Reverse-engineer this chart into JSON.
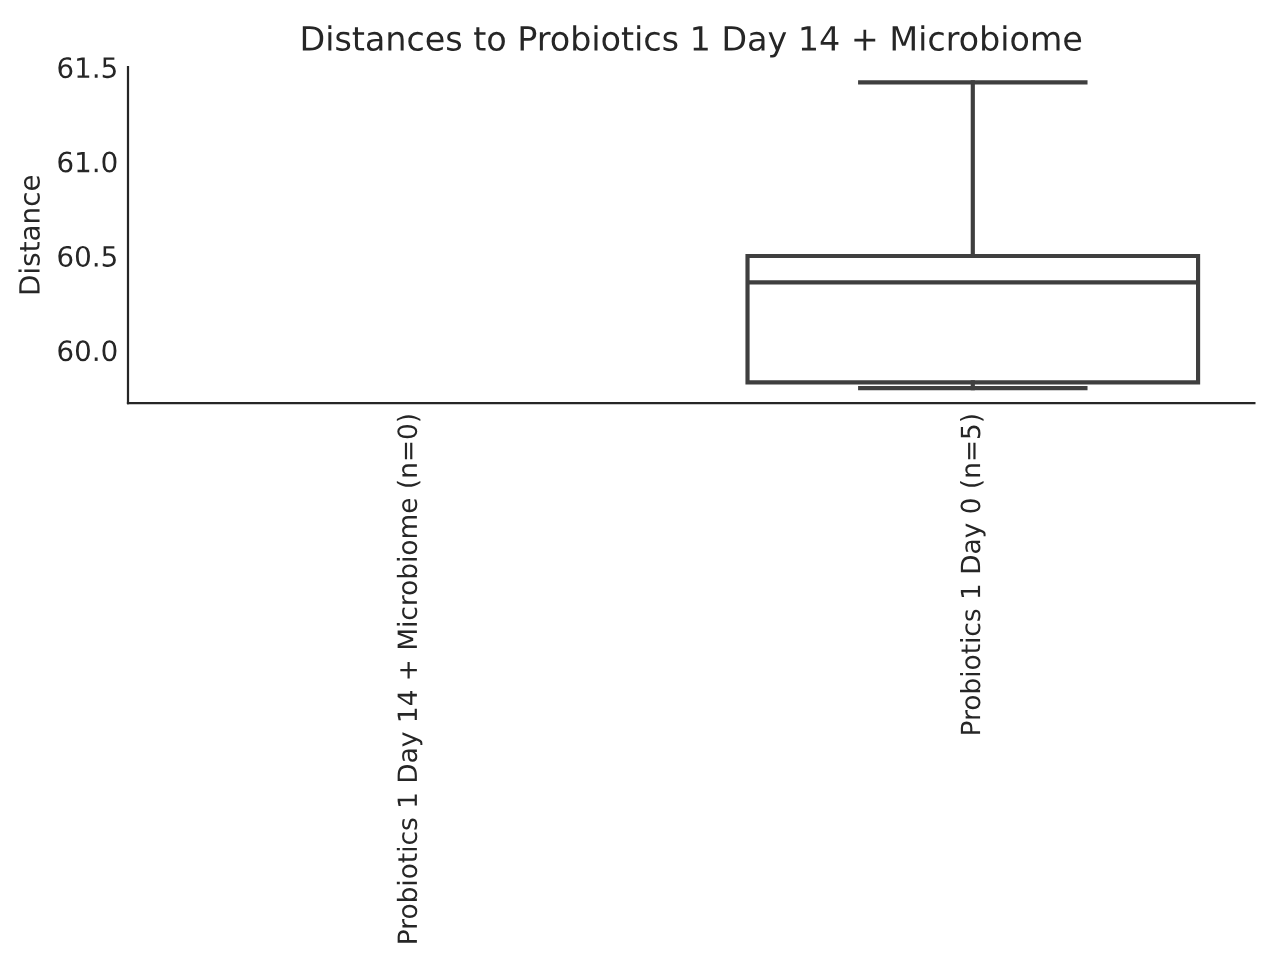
{
  "chart_data": {
    "type": "box",
    "title": "Distances to Probiotics 1 Day 14 + Microbiome",
    "ylabel": "Distance",
    "categories": [
      "Probiotics 1 Day 14 + Microbiome (n=0)",
      "Probiotics 1 Day 0 (n=5)"
    ],
    "boxes": [
      null,
      {
        "low": 59.8,
        "q1": 59.83,
        "median": 60.36,
        "q3": 60.5,
        "high": 61.42
      }
    ],
    "color": "#3f3f3f",
    "ylim": [
      59.72,
      61.5
    ],
    "yticks": [
      {
        "value": 60.0,
        "label": "60.0"
      },
      {
        "value": 60.5,
        "label": "60.5"
      },
      {
        "value": 61.0,
        "label": "61.0"
      },
      {
        "value": 61.5,
        "label": "61.5"
      }
    ],
    "grid": false
  }
}
